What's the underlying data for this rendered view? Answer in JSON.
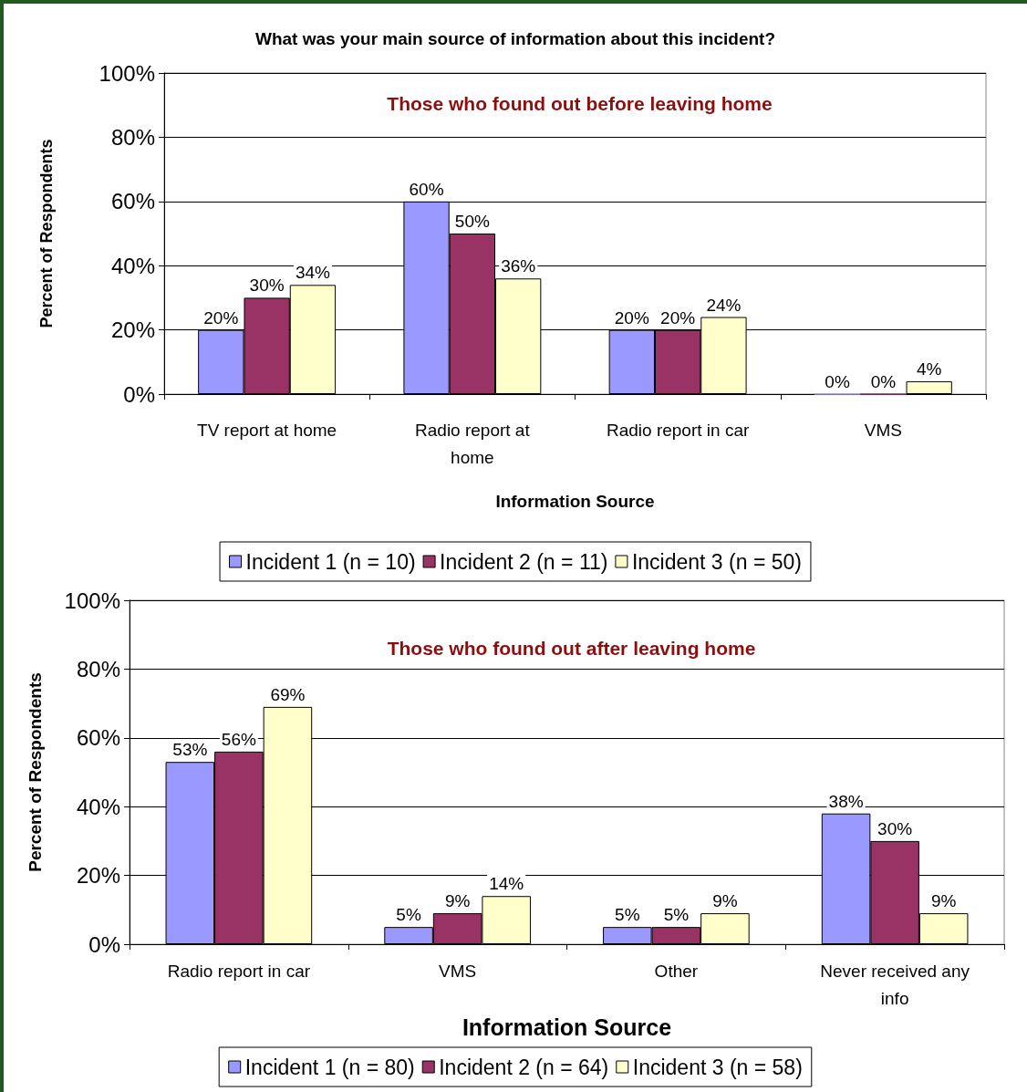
{
  "chart_data": [
    {
      "type": "bar",
      "title": "What was your main source of information about this incident?",
      "subtitle": "Those who found out before leaving home",
      "xlabel": "Information Source",
      "ylabel": "Percent of Respondents",
      "categories": [
        "TV report at home",
        "Radio report at\nhome",
        "Radio report in car",
        "VMS"
      ],
      "series": [
        {
          "name": "Incident 1 (n = 10)",
          "color": "#9999ff",
          "values": [
            20,
            60,
            20,
            0
          ],
          "value_labels": [
            "20%",
            "60%",
            "20%",
            "0%"
          ]
        },
        {
          "name": "Incident 2 (n = 11)",
          "color": "#993366",
          "values": [
            30,
            50,
            20,
            0
          ],
          "value_labels": [
            "30%",
            "50%",
            "20%",
            "0%"
          ]
        },
        {
          "name": "Incident 3 (n = 50)",
          "color": "#ffffcc",
          "values": [
            34,
            36,
            24,
            4
          ],
          "value_labels": [
            "34%",
            "36%",
            "24%",
            "4%"
          ]
        }
      ],
      "ylim": [
        0,
        100
      ],
      "yticks": [
        {
          "value": 0,
          "label": "0%"
        },
        {
          "value": 20,
          "label": "20%"
        },
        {
          "value": 40,
          "label": "40%"
        },
        {
          "value": 60,
          "label": "60%"
        },
        {
          "value": 80,
          "label": "80%"
        },
        {
          "value": 100,
          "label": "100%"
        }
      ],
      "grid": "y",
      "legend": "bottom"
    },
    {
      "type": "bar",
      "subtitle": "Those who found out after leaving home",
      "xlabel": "Information Source",
      "ylabel": "Percent of Respondents",
      "categories": [
        "Radio report in car",
        "VMS",
        "Other",
        "Never received any\ninfo"
      ],
      "series": [
        {
          "name": "Incident 1 (n = 80)",
          "color": "#9999ff",
          "values": [
            53,
            5,
            5,
            38
          ],
          "value_labels": [
            "53%",
            "5%",
            "5%",
            "38%"
          ]
        },
        {
          "name": "Incident 2 (n = 64)",
          "color": "#993366",
          "values": [
            56,
            9,
            5,
            30
          ],
          "value_labels": [
            "56%",
            "9%",
            "5%",
            "30%"
          ]
        },
        {
          "name": "Incident 3 (n = 58)",
          "color": "#ffffcc",
          "values": [
            69,
            14,
            9,
            9
          ],
          "value_labels": [
            "69%",
            "14%",
            "9%",
            "9%"
          ]
        }
      ],
      "ylim": [
        0,
        100
      ],
      "yticks": [
        {
          "value": 0,
          "label": "0%"
        },
        {
          "value": 20,
          "label": "20%"
        },
        {
          "value": 40,
          "label": "40%"
        },
        {
          "value": 60,
          "label": "60%"
        },
        {
          "value": 80,
          "label": "80%"
        },
        {
          "value": 100,
          "label": "100%"
        }
      ],
      "grid": "y",
      "legend": "bottom"
    }
  ]
}
